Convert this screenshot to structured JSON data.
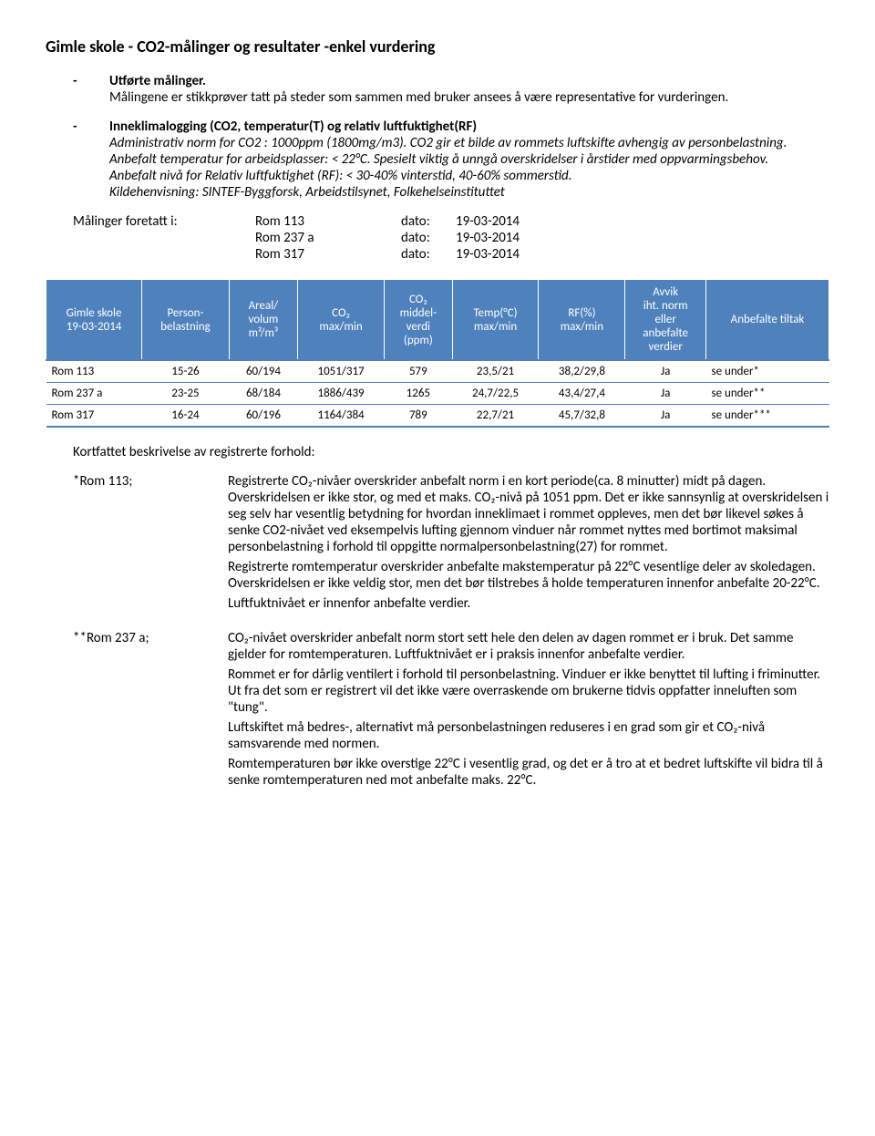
{
  "title": "Gimle skole - CO2-målinger og resultater -enkel vurdering",
  "bullets": {
    "b1": {
      "lead": "Utførte målinger.",
      "rest": "Målingene er stikkprøver tatt på steder som sammen med bruker ansees å være representative for vurderingen."
    },
    "b2": {
      "lead": "Inneklimalogging (CO2, temperatur(T) og relativ luftfuktighet(RF)",
      "l1": "Administrativ norm for CO2 : 1000ppm (1800mg/m3). CO2 gir et bilde av rommets luftskifte avhengig av personbelastning.",
      "l2": "Anbefalt temperatur for arbeidsplasser: < 22°C. Spesielt viktig å unngå overskridelser i årstider med oppvarmingsbehov.",
      "l3": "Anbefalt nivå for Relativ luftfuktighet (RF): < 30-40% vinterstid, 40-60% sommerstid.",
      "l4": "Kildehenvisning: SINTEF-Byggforsk, Arbeidstilsynet, Folkehelseinstituttet"
    }
  },
  "measurements": {
    "label": "Målinger foretatt i:",
    "dato_label": "dato:",
    "rows": [
      {
        "room": "Rom 113",
        "date": "19-03-2014"
      },
      {
        "room": "Rom 237 a",
        "date": "19-03-2014"
      },
      {
        "room": "Rom 317",
        "date": "19-03-2014"
      }
    ]
  },
  "table": {
    "header_bg": "#4f81bd",
    "header_fg": "#ffffff",
    "border_color": "#4f81bd",
    "columns": {
      "c0a": "Gimle skole",
      "c0b": "19-03-2014",
      "c1a": "Person-",
      "c1b": "belastning",
      "c2a": "Areal/",
      "c2b": "volum",
      "c2c": "m²/m³",
      "c3a": "CO₂",
      "c3b": "max/min",
      "c4a": "CO₂",
      "c4b": "middel-",
      "c4c": "verdi",
      "c4d": "(ppm)",
      "c5a": "Temp(°C)",
      "c5b": "max/min",
      "c6a": "RF(%)",
      "c6b": "max/min",
      "c7a": "Avvik",
      "c7b": "iht. norm",
      "c7c": "eller",
      "c7d": "anbefalte",
      "c7e": "verdier",
      "c8": "Anbefalte tiltak"
    },
    "rows": [
      {
        "room": "Rom 113",
        "persons": "15-26",
        "area": "60/194",
        "co2": "1051/317",
        "co2mid": "579",
        "temp": "23,5/21",
        "rf": "38,2/29,8",
        "avvik": "Ja",
        "tiltak": "se under*"
      },
      {
        "room": "Rom 237 a",
        "persons": "23-25",
        "area": "68/184",
        "co2": "1886/439",
        "co2mid": "1265",
        "temp": "24,7/22,5",
        "rf": "43,4/27,4",
        "avvik": "Ja",
        "tiltak": "se under**"
      },
      {
        "room": "Rom 317",
        "persons": "16-24",
        "area": "60/196",
        "co2": "1164/384",
        "co2mid": "789",
        "temp": "22,7/21",
        "rf": "45,7/32,8",
        "avvik": "Ja",
        "tiltak": "se under***"
      }
    ]
  },
  "desc": {
    "heading": "Kortfattet beskrivelse av registrerte forhold:",
    "r113": {
      "label": "*Rom 113;",
      "p1": "Registrerte CO₂-nivåer overskrider anbefalt norm i en kort periode(ca. 8 minutter) midt på dagen. Overskridelsen er ikke stor, og med et maks. CO₂-nivå på 1051 ppm. Det er ikke sannsynlig at overskridelsen i seg selv har vesentlig betydning for hvordan inneklimaet i rommet oppleves, men det bør likevel søkes å senke CO2-nivået ved eksempelvis lufting gjennom vinduer når rommet nyttes med bortimot maksimal personbelastning i forhold til oppgitte normalpersonbelastning(27) for rommet.",
      "p2": "Registrerte romtemperatur overskrider anbefalte makstemperatur på 22°C vesentlige deler av skoledagen. Overskridelsen er ikke veldig stor, men det bør tilstrebes å holde temperaturen innenfor anbefalte 20-22°C.",
      "p3": "Luftfuktnivået er innenfor anbefalte verdier."
    },
    "r237": {
      "label": "**Rom 237 a;",
      "p1": "CO₂-nivået overskrider anbefalt norm stort sett hele den delen av dagen rommet er i bruk. Det samme gjelder for romtemperaturen. Luftfuktnivået er i praksis innenfor anbefalte verdier.",
      "p2": "Rommet er for dårlig ventilert i forhold til personbelastning. Vinduer er ikke benyttet til lufting i friminutter. Ut fra det som er registrert vil det ikke være overraskende om brukerne tidvis oppfatter inneluften som \"tung\".",
      "p3": "Luftskiftet må bedres-, alternativt må personbelastningen reduseres i en grad som gir et CO₂-nivå samsvarende med normen.",
      "p4": "Romtemperaturen bør ikke overstige 22°C i vesentlig grad, og det er å tro at et bedret luftskifte vil bidra til å senke romtemperaturen ned mot anbefalte maks. 22°C."
    }
  }
}
